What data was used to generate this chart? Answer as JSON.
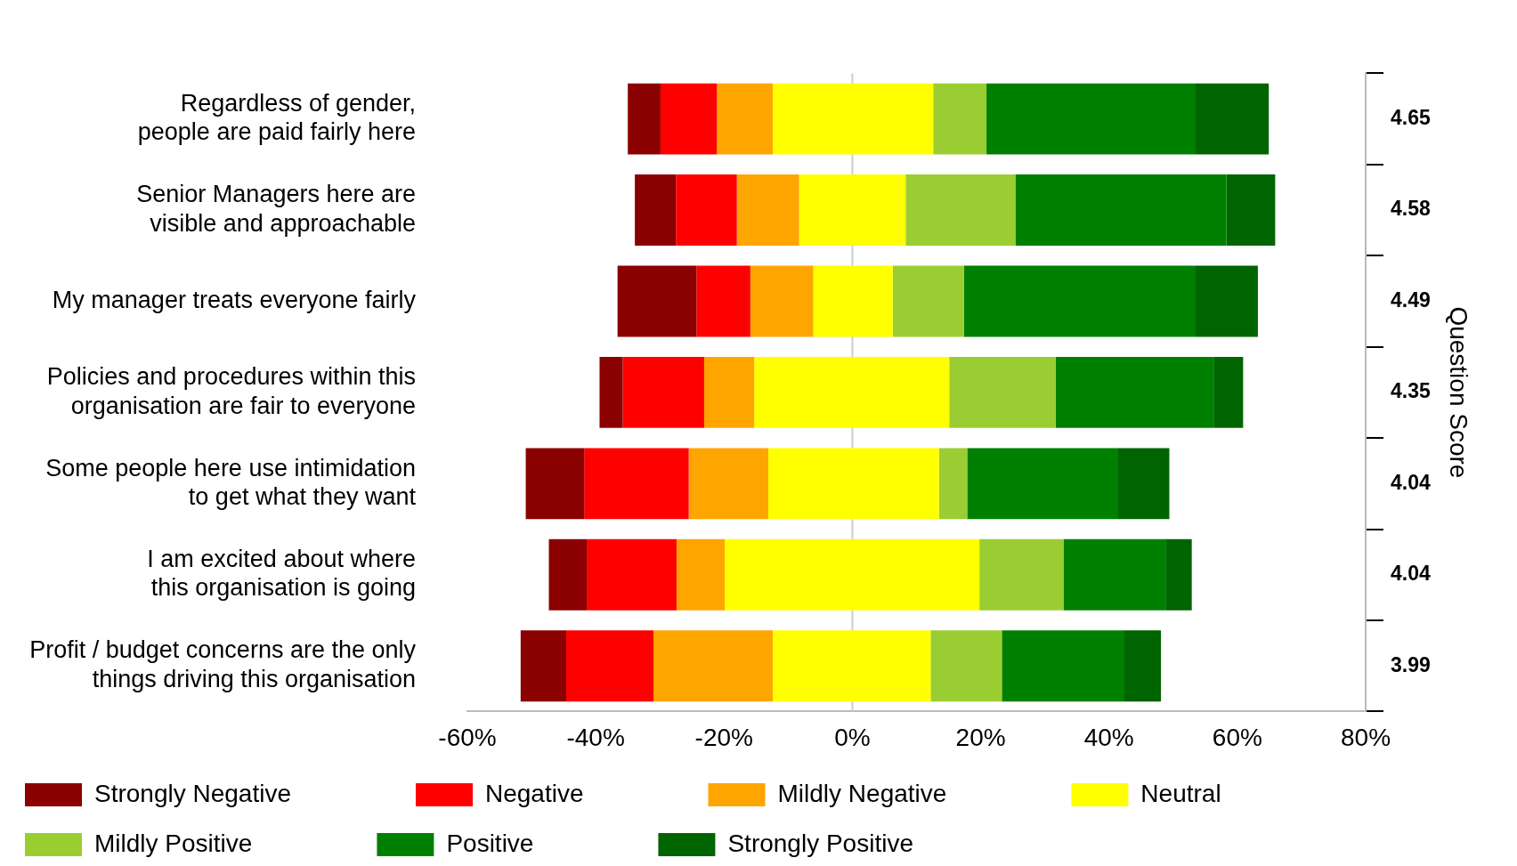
{
  "chart_data": {
    "type": "bar",
    "orientation": "horizontal",
    "categories": [
      "Regardless of gender,\npeople are paid fairly here",
      "Senior Managers here are\nvisible and approachable",
      "My manager treats everyone fairly",
      "Policies and procedures within this\norganisation are fair to everyone",
      "Some people here use intimidation\nto get what they want",
      "I am excited about where\nthis organisation is going",
      "Profit / budget concerns are the only\nthings driving this organisation"
    ],
    "y2_categories": [
      "4.65",
      "4.58",
      "4.49",
      "4.35",
      "4.04",
      "4.04",
      "3.99"
    ],
    "y2label": "Question Score",
    "series": [
      {
        "name": "Strongly Negative",
        "color": "#8b0000",
        "base": [
          -35.0,
          -33.9,
          -36.6,
          -39.4,
          -50.9,
          -47.3,
          -51.7
        ],
        "values": [
          5.1,
          6.4,
          12.3,
          3.6,
          9.1,
          5.9,
          7.1
        ]
      },
      {
        "name": "Negative",
        "color": "#ff0000",
        "base": [
          -29.9,
          -27.5,
          -24.3,
          -35.8,
          -41.8,
          -41.4,
          -44.6
        ],
        "values": [
          8.8,
          9.5,
          8.4,
          12.7,
          16.3,
          14.0,
          13.6
        ]
      },
      {
        "name": "Mildly Negative",
        "color": "#ffa500",
        "base": [
          -21.1,
          -18.0,
          -15.9,
          -23.1,
          -25.5,
          -27.4,
          -31.0
        ],
        "values": [
          8.7,
          9.7,
          9.8,
          7.8,
          12.4,
          7.5,
          18.6
        ]
      },
      {
        "name": "Neutral",
        "color": "#ffff00",
        "base": [
          -12.4,
          -8.3,
          -6.1,
          -15.3,
          -13.1,
          -19.9,
          -12.4
        ],
        "values": [
          25.0,
          16.6,
          12.4,
          30.4,
          26.6,
          39.7,
          24.6
        ]
      },
      {
        "name": "Mildly Positive",
        "color": "#9acd32",
        "base": [
          12.6,
          8.3,
          6.3,
          15.1,
          13.5,
          19.8,
          12.2
        ],
        "values": [
          8.3,
          17.1,
          11.1,
          16.6,
          4.4,
          13.1,
          11.1
        ]
      },
      {
        "name": "Positive",
        "color": "#008000",
        "base": [
          20.9,
          25.4,
          17.4,
          31.7,
          17.9,
          32.9,
          23.3
        ],
        "values": [
          32.6,
          32.9,
          36.1,
          24.7,
          23.4,
          15.9,
          19.1
        ]
      },
      {
        "name": "Strongly Positive",
        "color": "#006400",
        "base": [
          53.5,
          58.3,
          53.5,
          56.4,
          41.3,
          48.8,
          42.4
        ],
        "values": [
          11.4,
          7.6,
          9.7,
          4.5,
          8.1,
          4.1,
          5.7
        ]
      }
    ],
    "xlim": [
      -60,
      80
    ],
    "xticks": [
      {
        "value": -60,
        "label": "-60%"
      },
      {
        "value": -40,
        "label": "-40%"
      },
      {
        "value": -20,
        "label": "-20%"
      },
      {
        "value": 0,
        "label": "0%"
      },
      {
        "value": 20,
        "label": "20%"
      },
      {
        "value": 40,
        "label": "40%"
      },
      {
        "value": 60,
        "label": "60%"
      },
      {
        "value": 80,
        "label": "80%"
      }
    ],
    "ref_lines": [
      {
        "axis": "x",
        "value": 0,
        "color": "#cccccc"
      }
    ],
    "grid": false,
    "legend": "bottom"
  }
}
